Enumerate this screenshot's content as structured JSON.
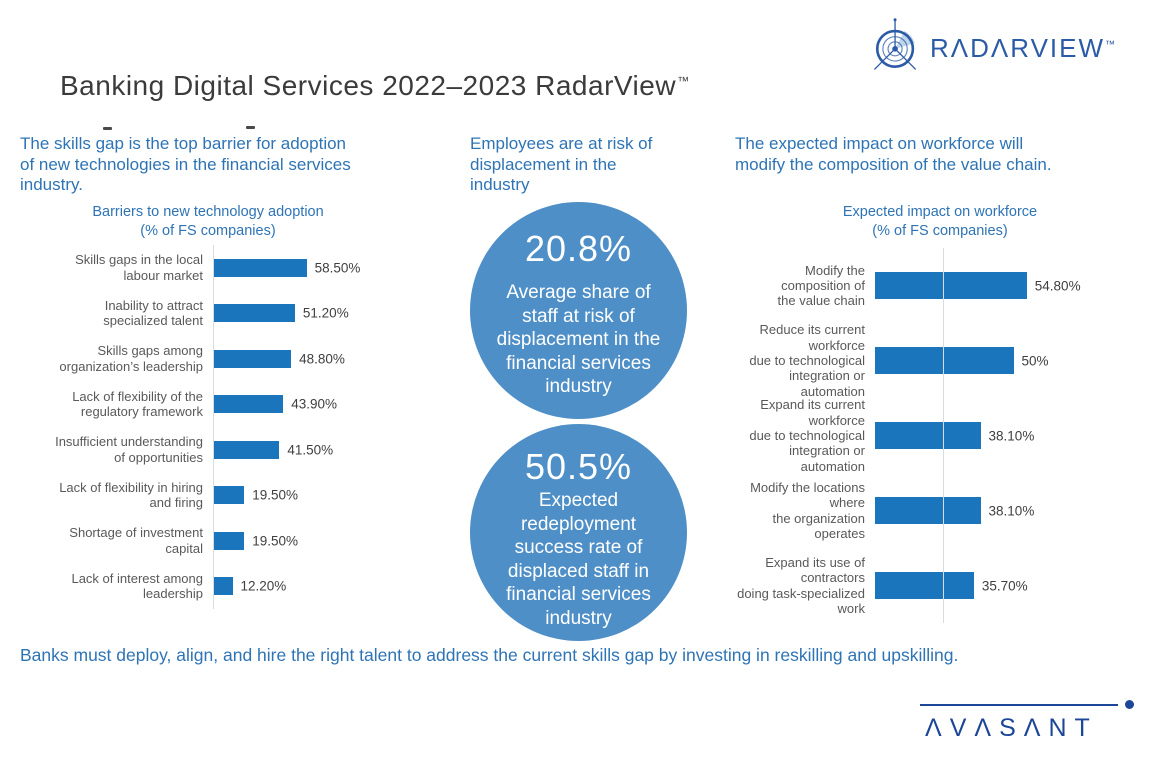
{
  "header": {
    "title": "Banking Digital Services 2022–2023 RadarView",
    "title_trademark": "™",
    "radarview_logo": {
      "text": "RADARVIEW",
      "trademark": "™",
      "color": "#2B5BA7",
      "icon": "radar-icon"
    }
  },
  "left_panel": {
    "intro_lines": [
      "The skills gap is the top barrier for adoption",
      "of new technologies in the financial services",
      "industry."
    ]
  },
  "middle_panel": {
    "intro_lines": [
      "Employees are at risk of",
      "displacement in the",
      "industry"
    ],
    "circles": [
      {
        "value": "20.8%",
        "caption_lines": [
          "Average share of",
          "staff at risk of",
          "displacement in the",
          "financial services",
          "industry"
        ],
        "fill_color": "#4E8FC7",
        "text_color": "#FFFFFF"
      },
      {
        "value": "50.5%",
        "caption_lines": [
          "Expected",
          "redeployment",
          "success rate of",
          "displaced staff in",
          "financial services",
          "industry"
        ],
        "fill_color": "#4E8FC7",
        "text_color": "#FFFFFF"
      }
    ]
  },
  "right_panel": {
    "intro_lines": [
      "The expected impact on workforce will",
      "modify the composition of the value chain."
    ]
  },
  "footer": {
    "takeaway": "Banks must deploy, align, and hire the right talent to address the current skills gap by investing in reskilling and upskilling.",
    "avasant_logo": "AVASANT",
    "avasant_color": "#1C4697"
  },
  "colors": {
    "bar_blue": "#1B75BC",
    "circle_blue": "#4E8FC7",
    "intro_blue": "#2E74B5",
    "category_gray": "#595959",
    "value_dark": "#3F3F3F",
    "title_dark": "#3B3B3B",
    "axis_gray": "#D6DBE4"
  },
  "chart_data": [
    {
      "type": "bar",
      "orientation": "horizontal",
      "title": "Barriers to new technology adoption",
      "subtitle": "(% of FS companies)",
      "unit": "%",
      "xlim": [
        0,
        100
      ],
      "grid": false,
      "bar_color": "#1B75BC",
      "categories": [
        [
          "Skills gaps in the local",
          "labour market"
        ],
        [
          "Inability to attract",
          "specialized talent"
        ],
        [
          "Skills gaps among",
          "organization’s leadership"
        ],
        [
          "Lack of flexibility of the",
          "regulatory framework"
        ],
        [
          "Insufficient understanding",
          "of opportunities"
        ],
        [
          "Lack of flexibility in hiring",
          "and firing"
        ],
        [
          "Shortage of investment",
          "capital"
        ],
        [
          "Lack of interest among",
          "leadership"
        ]
      ],
      "values": [
        58.5,
        51.2,
        48.8,
        43.9,
        41.5,
        19.5,
        19.5,
        12.2
      ],
      "value_labels": [
        "58.50%",
        "51.20%",
        "48.80%",
        "43.90%",
        "41.50%",
        "19.50%",
        "19.50%",
        "12.20%"
      ]
    },
    {
      "type": "bar",
      "orientation": "horizontal",
      "title": "Expected impact on workforce",
      "subtitle": "(% of FS companies)",
      "unit": "%",
      "xlim": [
        0,
        100
      ],
      "grid": false,
      "bar_color": "#1B75BC",
      "categories": [
        [
          "Modify the composition of",
          "the value chain"
        ],
        [
          "Reduce its current workforce",
          "due to technological",
          "integration or automation"
        ],
        [
          "Expand its current workforce",
          "due to technological",
          "integration or automation"
        ],
        [
          "Modify the locations where",
          "the organization operates"
        ],
        [
          "Expand its use of contractors",
          "doing task-specialized work"
        ]
      ],
      "values": [
        54.8,
        50,
        38.1,
        38.1,
        35.7
      ],
      "value_labels": [
        "54.80%",
        "50%",
        "38.10%",
        "38.10%",
        "35.70%"
      ]
    }
  ]
}
